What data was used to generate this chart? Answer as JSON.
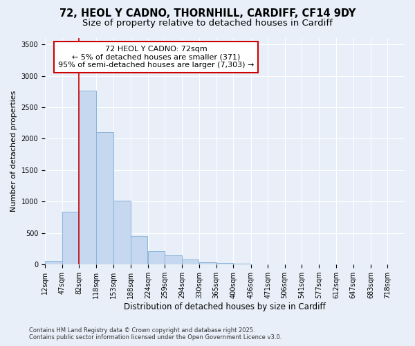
{
  "title1": "72, HEOL Y CADNO, THORNHILL, CARDIFF, CF14 9DY",
  "title2": "Size of property relative to detached houses in Cardiff",
  "xlabel": "Distribution of detached houses by size in Cardiff",
  "ylabel": "Number of detached properties",
  "bar_color": "#c5d8f0",
  "bar_edge_color": "#8ab4d8",
  "vline_color": "#cc0000",
  "vline_x_index": 2,
  "annotation_text": "72 HEOL Y CADNO: 72sqm\n← 5% of detached houses are smaller (371)\n95% of semi-detached houses are larger (7,303) →",
  "annotation_box_color": "#ffffff",
  "annotation_box_edge": "#cc0000",
  "bins": [
    12,
    47,
    82,
    118,
    153,
    188,
    224,
    259,
    294,
    330,
    365,
    400,
    436,
    471,
    506,
    541,
    577,
    612,
    647,
    683,
    718
  ],
  "counts": [
    60,
    840,
    2760,
    2100,
    1020,
    450,
    210,
    150,
    80,
    40,
    25,
    10,
    0,
    0,
    0,
    0,
    0,
    0,
    0,
    0
  ],
  "ylim": [
    0,
    3600
  ],
  "yticks": [
    0,
    500,
    1000,
    1500,
    2000,
    2500,
    3000,
    3500
  ],
  "background_color": "#e8eff8",
  "footer_text": "Contains HM Land Registry data © Crown copyright and database right 2025.\nContains public sector information licensed under the Open Government Licence v3.0.",
  "grid_color": "#ffffff",
  "title1_fontsize": 10.5,
  "title2_fontsize": 9.5,
  "tick_fontsize": 7,
  "ylabel_fontsize": 8,
  "xlabel_fontsize": 8.5,
  "annotation_fontsize": 8,
  "footer_fontsize": 6
}
